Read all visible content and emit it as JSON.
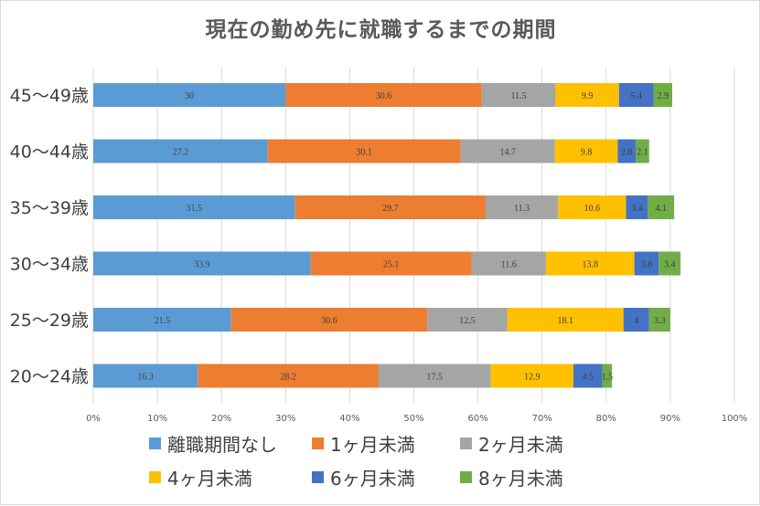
{
  "chart_data": {
    "type": "bar",
    "orientation": "horizontal",
    "stacked": "percent",
    "title": "現在の勤め先に就職するまでの期間",
    "categories": [
      "45〜49歳",
      "40〜44歳",
      "35〜39歳",
      "30〜34歳",
      "25〜29歳",
      "20〜24歳"
    ],
    "series": [
      {
        "name": "離職期間なし",
        "color": "#5b9bd5",
        "values": [
          30,
          27.2,
          31.5,
          33.9,
          21.5,
          16.3
        ],
        "labels": [
          "30",
          "27.2",
          "31.5",
          "33.9",
          "21.5",
          "16.3"
        ]
      },
      {
        "name": "1ヶ月未満",
        "color": "#ed7d31",
        "values": [
          30.6,
          30.1,
          29.7,
          25.1,
          30.6,
          28.2
        ],
        "labels": [
          "30.6",
          "30.1",
          "29.7",
          "25.1",
          "30.6",
          "28.2"
        ]
      },
      {
        "name": "2ヶ月未満",
        "color": "#a5a5a5",
        "values": [
          11.5,
          14.7,
          11.3,
          11.6,
          12.5,
          17.5
        ],
        "labels": [
          "11.5",
          "14.7",
          "11.3",
          "11.6",
          "12.5",
          "17.5"
        ]
      },
      {
        "name": "4ヶ月未満",
        "color": "#ffc000",
        "values": [
          9.9,
          9.8,
          10.6,
          13.8,
          18.1,
          12.9
        ],
        "labels": [
          "9.9",
          "9.8",
          "10.6",
          "13.8",
          "18.1",
          "12.9"
        ]
      },
      {
        "name": "6ヶ月未満",
        "color": "#4472c4",
        "values": [
          5.4,
          2.8,
          3.4,
          3.8,
          4,
          4.5
        ],
        "labels": [
          "5.4",
          "2.8",
          "3.4",
          "3.8",
          "4",
          "4.5"
        ]
      },
      {
        "name": "8ヶ月未満",
        "color": "#70ad47",
        "values": [
          2.9,
          2.1,
          4.1,
          3.4,
          3.3,
          1.5
        ],
        "labels": [
          "2.9",
          "2.1",
          "4.1",
          "3.4",
          "3.3",
          "1.5"
        ]
      }
    ],
    "xticks": [
      "0%",
      "10%",
      "20%",
      "30%",
      "40%",
      "50%",
      "60%",
      "70%",
      "80%",
      "90%",
      "100%"
    ],
    "xlim": [
      0,
      100
    ],
    "grid": "vertical",
    "legend": "bottom",
    "colors": {
      "grid": "#d9d9d9",
      "tick_text": "#595959",
      "category_text": "#404040",
      "label_text": "#404040"
    }
  }
}
